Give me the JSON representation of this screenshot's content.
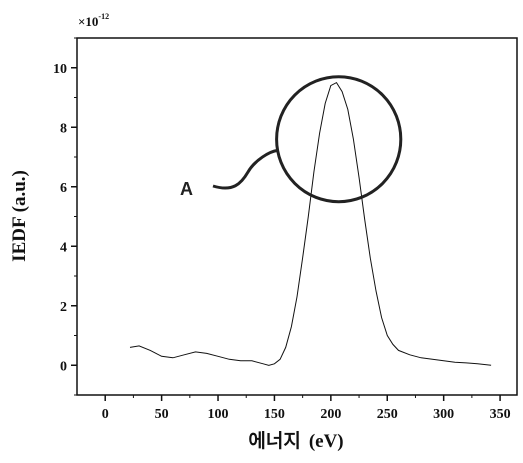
{
  "chart_data": {
    "type": "line",
    "xlabel": "에너지",
    "xlabel_unit": "(eV)",
    "ylabel": "IEDF (a.u.)",
    "y_multiplier": "×10",
    "y_multiplier_exp": "-12",
    "xlim": [
      -25,
      365
    ],
    "ylim": [
      -1,
      11
    ],
    "xticks": [
      0,
      50,
      100,
      150,
      200,
      250,
      300,
      350
    ],
    "yticks": [
      0,
      2,
      4,
      6,
      8,
      10
    ],
    "grid": false,
    "series": [
      {
        "x": [
          22,
          30,
          40,
          50,
          60,
          70,
          80,
          90,
          100,
          110,
          120,
          130,
          140,
          145,
          150,
          155,
          160,
          165,
          170,
          175,
          180,
          185,
          190,
          195,
          200,
          205,
          210,
          215,
          220,
          225,
          230,
          235,
          240,
          245,
          250,
          255,
          260,
          270,
          280,
          290,
          300,
          310,
          320,
          330,
          342
        ],
        "y": [
          0.6,
          0.65,
          0.5,
          0.3,
          0.25,
          0.35,
          0.45,
          0.4,
          0.3,
          0.2,
          0.15,
          0.15,
          0.05,
          0.0,
          0.05,
          0.2,
          0.6,
          1.3,
          2.3,
          3.6,
          5.0,
          6.5,
          7.8,
          8.8,
          9.4,
          9.5,
          9.2,
          8.6,
          7.6,
          6.3,
          4.9,
          3.6,
          2.5,
          1.6,
          1.0,
          0.7,
          0.5,
          0.35,
          0.25,
          0.2,
          0.15,
          0.1,
          0.08,
          0.05,
          0.0
        ]
      }
    ],
    "annotations": [
      {
        "label": "A",
        "type": "circle",
        "center": [
          207,
          7.6
        ],
        "radius_x": 55,
        "radius_y": 2.1
      }
    ]
  }
}
